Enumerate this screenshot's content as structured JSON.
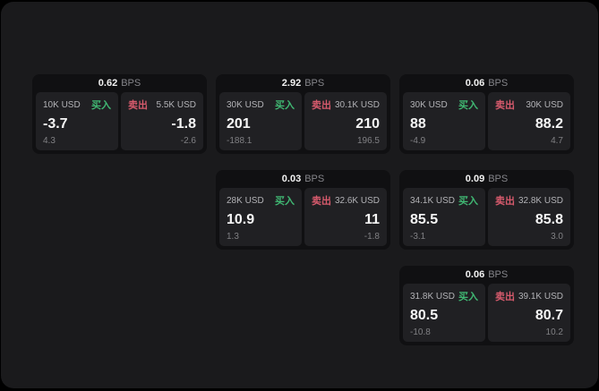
{
  "labels": {
    "buy": "买入",
    "sell": "卖出",
    "bps_unit": "BPS"
  },
  "colors": {
    "buy_green": "#40b873",
    "sell_red": "#d65a6c",
    "window_bg": "#1a1a1c",
    "card_bg": "#101012",
    "panel_bg": "#202023"
  },
  "cards": [
    {
      "col": 0,
      "row": 0,
      "bps": "0.62",
      "buy": {
        "amount": "10K USD",
        "main": "-3.7",
        "sub": "4.3"
      },
      "sell": {
        "amount": "5.5K USD",
        "main": "-1.8",
        "sub": "-2.6"
      }
    },
    {
      "col": 1,
      "row": 0,
      "bps": "2.92",
      "buy": {
        "amount": "30K USD",
        "main": "201",
        "sub": "-188.1"
      },
      "sell": {
        "amount": "30.1K USD",
        "main": "210",
        "sub": "196.5"
      }
    },
    {
      "col": 2,
      "row": 0,
      "bps": "0.06",
      "buy": {
        "amount": "30K USD",
        "main": "88",
        "sub": "-4.9"
      },
      "sell": {
        "amount": "30K USD",
        "main": "88.2",
        "sub": "4.7"
      }
    },
    {
      "col": 1,
      "row": 1,
      "bps": "0.03",
      "buy": {
        "amount": "28K USD",
        "main": "10.9",
        "sub": "1.3"
      },
      "sell": {
        "amount": "32.6K USD",
        "main": "11",
        "sub": "-1.8"
      }
    },
    {
      "col": 2,
      "row": 1,
      "bps": "0.09",
      "buy": {
        "amount": "34.1K USD",
        "main": "85.5",
        "sub": "-3.1"
      },
      "sell": {
        "amount": "32.8K USD",
        "main": "85.8",
        "sub": "3.0"
      }
    },
    {
      "col": 2,
      "row": 2,
      "bps": "0.06",
      "buy": {
        "amount": "31.8K USD",
        "main": "80.5",
        "sub": "-10.8"
      },
      "sell": {
        "amount": "39.1K USD",
        "main": "80.7",
        "sub": "10.2"
      }
    }
  ]
}
